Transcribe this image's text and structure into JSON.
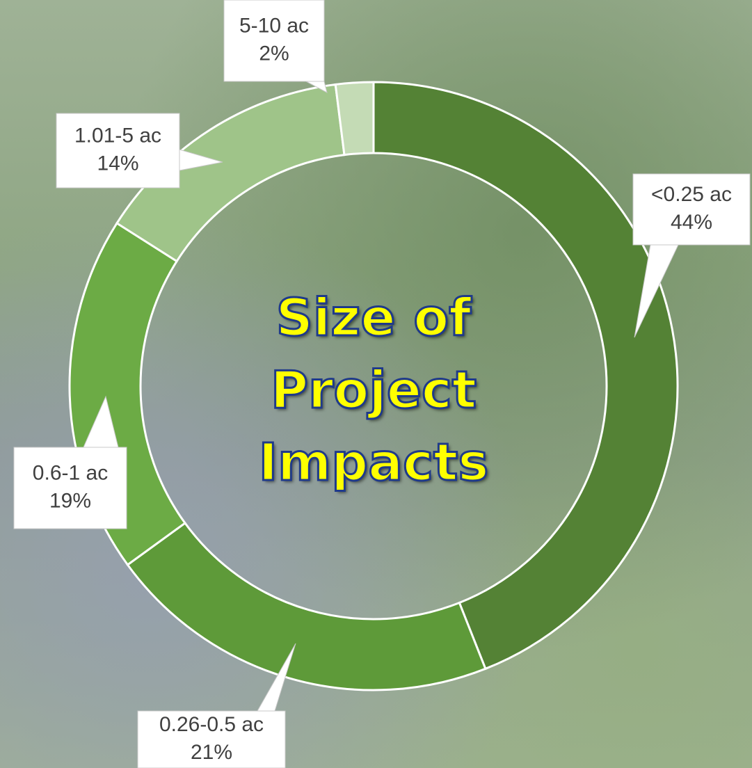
{
  "chart_data": {
    "type": "donut",
    "title": "Size of Project Impacts",
    "categories": [
      "<0.25 ac",
      "0.26-0.5 ac",
      "0.6-1 ac",
      "1.01-5 ac",
      "5-10 ac"
    ],
    "values": [
      44,
      21,
      19,
      14,
      2
    ],
    "value_labels": [
      "44%",
      "21%",
      "19%",
      "14%",
      "2%"
    ],
    "colors": [
      "#548235",
      "#5e9a39",
      "#6cab45",
      "#9fc489",
      "#c4dbb5"
    ]
  }
}
